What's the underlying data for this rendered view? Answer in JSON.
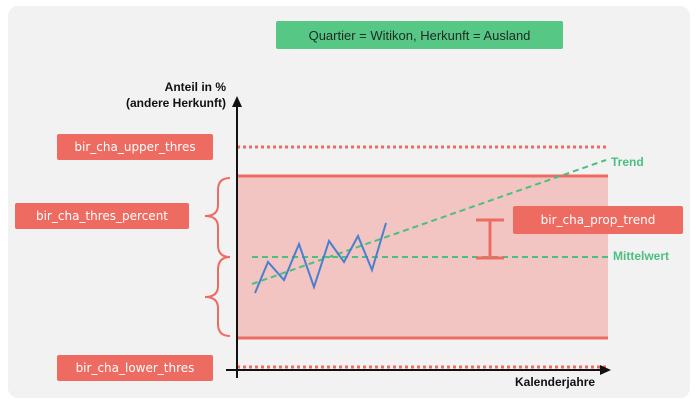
{
  "header": {
    "title": "Quartier = Witikon, Herkunft = Ausland"
  },
  "axes": {
    "y_label_line1": "Anteil in %",
    "y_label_line2": "(andere Herkunft)",
    "x_label": "Kalenderjahre"
  },
  "labels": {
    "upper_thres": "bir_cha_upper_thres",
    "thres_percent": "bir_cha_thres_percent",
    "lower_thres": "bir_cha_lower_thres",
    "prop_trend": "bir_cha_prop_trend"
  },
  "lines": {
    "trend": "Trend",
    "mean": "Mittelwert"
  },
  "colors": {
    "band_fill": "#f2c4c2",
    "band_edge": "#ee6b62",
    "label_bg": "#ee6b62",
    "header_bg": "#57c785",
    "green": "#4cbf7f",
    "series": "#4a7fd0"
  }
}
